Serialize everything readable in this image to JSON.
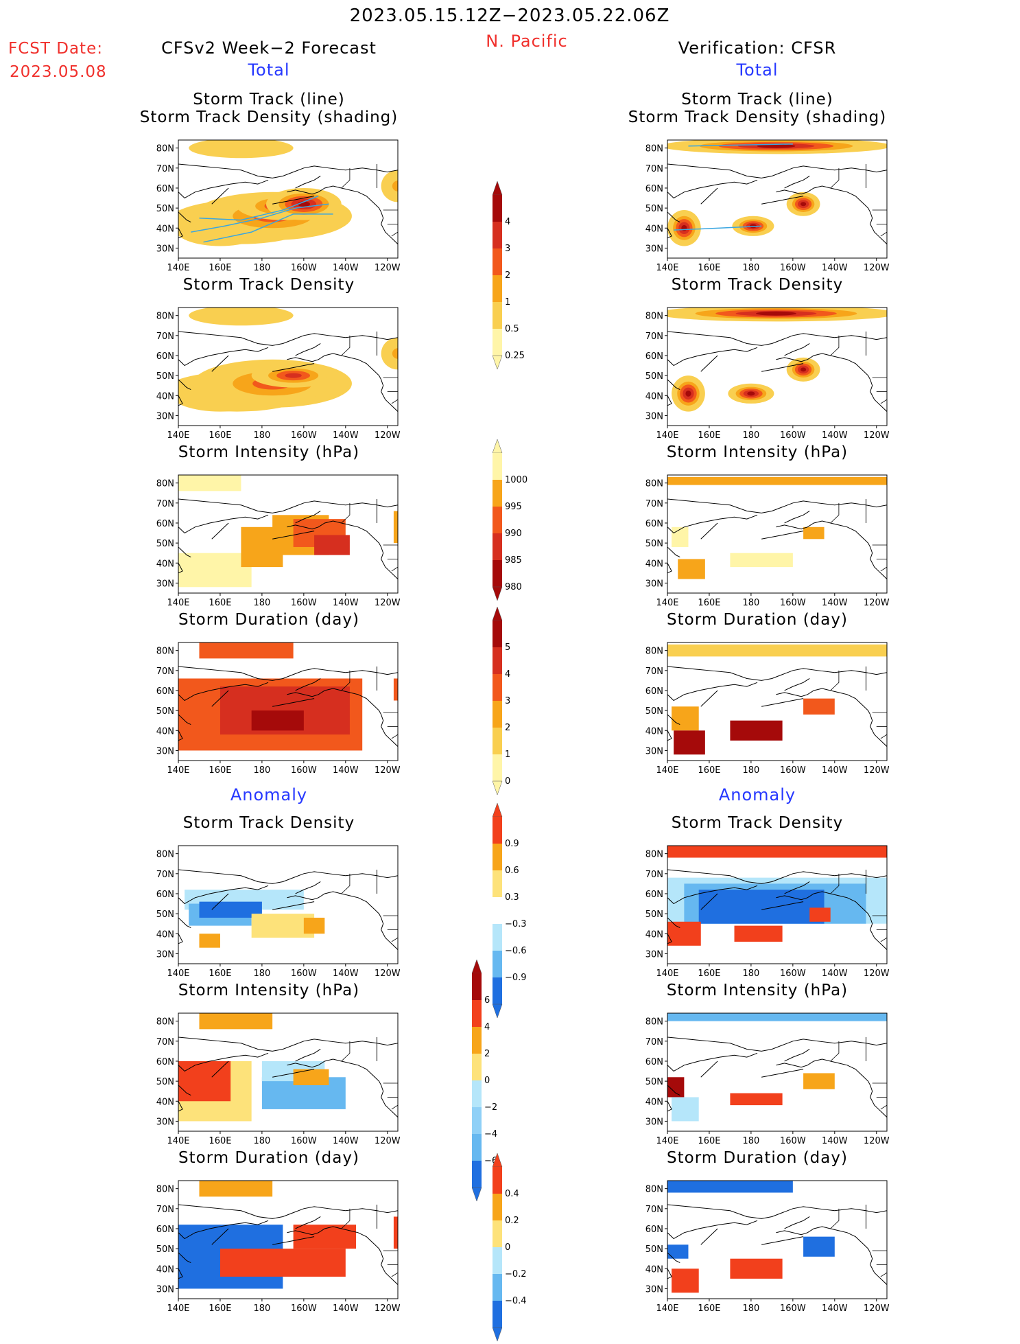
{
  "header": {
    "date_range": "2023.05.15.12Z−2023.05.22.06Z",
    "region": "N. Pacific",
    "fcst_label": "FCST Date:",
    "fcst_date": "2023.05.08",
    "left_title": "CFSv2 Week−2 Forecast",
    "right_title": "Verification: CFSR",
    "total_label": "Total",
    "anomaly_label": "Anomaly"
  },
  "panel_titles": {
    "track_line": "Storm Track (line)",
    "track_density_shading": "Storm Track Density (shading)",
    "track_density": "Storm Track Density",
    "intensity": "Storm Intensity (hPa)",
    "duration": "Storm Duration (day)"
  },
  "axes": {
    "x_ticks": [
      "140E",
      "160E",
      "180",
      "160W",
      "140W",
      "120W"
    ],
    "y_ticks": [
      "80N",
      "70N",
      "60N",
      "50N",
      "40N",
      "30N"
    ],
    "lon_range": [
      140,
      245
    ],
    "lat_range": [
      25,
      84
    ]
  },
  "colorbars": [
    {
      "id": "density_total",
      "labels": [
        "4",
        "3",
        "2",
        "1",
        "0.5",
        "0.25"
      ],
      "colors": [
        "#a50a0a",
        "#d62f1f",
        "#f2581c",
        "#f7a51a",
        "#f9cf50",
        "#fff5a8"
      ]
    },
    {
      "id": "intensity_total",
      "labels": [
        "1000",
        "995",
        "990",
        "985",
        "980"
      ],
      "colors": [
        "#fff5a8",
        "#f7a51a",
        "#f2581c",
        "#d62f1f",
        "#a50a0a"
      ]
    },
    {
      "id": "duration_total",
      "labels": [
        "5",
        "4",
        "3",
        "2",
        "1",
        "0"
      ],
      "colors": [
        "#a50a0a",
        "#d62f1f",
        "#f2581c",
        "#f7a51a",
        "#f9cf50",
        "#fff5a8"
      ]
    },
    {
      "id": "density_anom",
      "labels": [
        "0.9",
        "0.6",
        "0.3",
        "−0.3",
        "−0.6",
        "−0.9"
      ],
      "colors": [
        "#f2401c",
        "#f7a51a",
        "#fde27a",
        "#ffffff",
        "#b5e6fa",
        "#66b8f0",
        "#1f6fe0"
      ]
    },
    {
      "id": "intensity_anom",
      "labels": [
        "6",
        "4",
        "2",
        "0",
        "−2",
        "−4",
        "−6"
      ],
      "colors": [
        "#a50a0a",
        "#f2401c",
        "#f7a51a",
        "#fde27a",
        "#b5e6fa",
        "#8fd0f7",
        "#66b8f0",
        "#1f6fe0"
      ]
    },
    {
      "id": "duration_anom",
      "labels": [
        "0.4",
        "0.2",
        "0",
        "−0.2",
        "−0.4"
      ],
      "colors": [
        "#f2401c",
        "#f7a51a",
        "#fde27a",
        "#b5e6fa",
        "#66b8f0",
        "#1f6fe0"
      ]
    }
  ],
  "chart_data": [
    {
      "id": "fc_track",
      "type": "heatmap",
      "title": "Storm Track (line) Storm Track Density (shading)",
      "column": "CFSv2 Week−2 Forecast",
      "section": "Total",
      "fields": [
        {
          "lon": 190,
          "lat": 51,
          "rx": 22,
          "ry": 7,
          "level": 3
        },
        {
          "lon": 185,
          "lat": 46,
          "rx": 38,
          "ry": 12,
          "level": 2
        },
        {
          "lon": 170,
          "lat": 43,
          "rx": 35,
          "ry": 11,
          "level": 1
        },
        {
          "lon": 160,
          "lat": 40,
          "rx": 22,
          "ry": 9,
          "level": 0
        },
        {
          "lon": 200,
          "lat": 52,
          "rx": 18,
          "ry": 8,
          "level": 4
        },
        {
          "lon": 170,
          "lat": 80,
          "rx": 25,
          "ry": 5,
          "level": 0
        },
        {
          "lon": 245,
          "lat": 61,
          "rx": 8,
          "ry": 8,
          "level": 1
        }
      ],
      "tracks": [
        [
          [
            146,
            38
          ],
          [
            162,
            41
          ],
          [
            180,
            45
          ],
          [
            196,
            50
          ],
          [
            212,
            52
          ]
        ],
        [
          [
            150,
            45
          ],
          [
            170,
            44
          ],
          [
            190,
            49
          ],
          [
            207,
            56
          ]
        ],
        [
          [
            152,
            33
          ],
          [
            175,
            38
          ],
          [
            195,
            47
          ],
          [
            214,
            47
          ]
        ]
      ]
    },
    {
      "id": "ver_track",
      "type": "heatmap",
      "title": "Storm Track (line) Storm Track Density (shading)",
      "column": "Verification: CFSR",
      "section": "Total",
      "fields": [
        {
          "lon": 148,
          "lat": 40,
          "rx": 8,
          "ry": 9,
          "level": 4
        },
        {
          "lon": 181,
          "lat": 41,
          "rx": 10,
          "ry": 5,
          "level": 4
        },
        {
          "lon": 205,
          "lat": 52,
          "rx": 8,
          "ry": 6,
          "level": 4
        },
        {
          "lon": 192,
          "lat": 81,
          "rx": 55,
          "ry": 4,
          "level": 4
        }
      ],
      "tracks": [
        [
          [
            143,
            39
          ],
          [
            165,
            40
          ],
          [
            185,
            41
          ]
        ],
        [
          [
            150,
            81
          ],
          [
            200,
            82
          ]
        ]
      ]
    },
    {
      "id": "fc_density",
      "type": "heatmap",
      "title": "Storm Track Density",
      "column": "CFSv2 Week−2 Forecast",
      "section": "Total",
      "fields": [
        {
          "lon": 195,
          "lat": 50,
          "rx": 20,
          "ry": 6,
          "level": 3
        },
        {
          "lon": 185,
          "lat": 46,
          "rx": 38,
          "ry": 12,
          "level": 2
        },
        {
          "lon": 168,
          "lat": 42,
          "rx": 35,
          "ry": 10,
          "level": 1
        },
        {
          "lon": 160,
          "lat": 41,
          "rx": 24,
          "ry": 9,
          "level": 0
        },
        {
          "lon": 170,
          "lat": 80,
          "rx": 25,
          "ry": 5,
          "level": 0
        },
        {
          "lon": 245,
          "lat": 61,
          "rx": 8,
          "ry": 8,
          "level": 1
        }
      ]
    },
    {
      "id": "ver_density",
      "type": "heatmap",
      "title": "Storm Track Density",
      "column": "Verification: CFSR",
      "section": "Total",
      "fields": [
        {
          "lon": 150,
          "lat": 41,
          "rx": 8,
          "ry": 9,
          "level": 4
        },
        {
          "lon": 180,
          "lat": 41,
          "rx": 11,
          "ry": 5,
          "level": 4
        },
        {
          "lon": 205,
          "lat": 53,
          "rx": 8,
          "ry": 6,
          "level": 4
        },
        {
          "lon": 192,
          "lat": 81,
          "rx": 58,
          "ry": 4,
          "level": 4
        }
      ]
    },
    {
      "id": "fc_intensity",
      "type": "heatmap",
      "title": "Storm Intensity (hPa)",
      "column": "CFSv2 Week−2 Forecast",
      "section": "Total",
      "cells": [
        [
          140,
          170,
          76,
          84,
          0
        ],
        [
          140,
          175,
          28,
          45,
          0
        ],
        [
          170,
          190,
          38,
          58,
          1
        ],
        [
          185,
          212,
          44,
          64,
          1
        ],
        [
          195,
          220,
          48,
          62,
          2
        ],
        [
          205,
          222,
          44,
          54,
          3
        ],
        [
          243,
          245,
          50,
          66,
          1
        ]
      ]
    },
    {
      "id": "ver_intensity",
      "type": "heatmap",
      "title": "Storm Intensity (hPa)",
      "column": "Verification: CFSR",
      "section": "Total",
      "cells": [
        [
          140,
          245,
          79,
          83,
          1
        ],
        [
          142,
          150,
          48,
          58,
          0
        ],
        [
          145,
          158,
          32,
          42,
          1
        ],
        [
          170,
          200,
          38,
          45,
          0
        ],
        [
          205,
          215,
          52,
          58,
          1
        ]
      ]
    },
    {
      "id": "fc_duration",
      "type": "heatmap",
      "title": "Storm Duration (day)",
      "column": "CFSv2 Week−2 Forecast",
      "section": "Total",
      "cells": [
        [
          150,
          195,
          76,
          84,
          2
        ],
        [
          140,
          228,
          30,
          66,
          2
        ],
        [
          160,
          222,
          38,
          62,
          3
        ],
        [
          175,
          200,
          40,
          50,
          4
        ],
        [
          243,
          245,
          55,
          66,
          2
        ]
      ]
    },
    {
      "id": "ver_duration",
      "type": "heatmap",
      "title": "Storm Duration (day)",
      "column": "Verification: CFSR",
      "section": "Total",
      "cells": [
        [
          140,
          245,
          77,
          83,
          0
        ],
        [
          142,
          155,
          40,
          52,
          1
        ],
        [
          143,
          158,
          28,
          40,
          4
        ],
        [
          170,
          195,
          35,
          45,
          4
        ],
        [
          205,
          220,
          48,
          56,
          2
        ]
      ]
    },
    {
      "id": "fc_density_anom",
      "type": "heatmap",
      "title": "Storm Track Density",
      "column": "CFSv2 Week−2 Forecast",
      "section": "Anomaly",
      "cells": [
        [
          143,
          200,
          52,
          62,
          4
        ],
        [
          145,
          175,
          44,
          55,
          5
        ],
        [
          150,
          180,
          48,
          56,
          6
        ],
        [
          175,
          205,
          38,
          50,
          2
        ],
        [
          150,
          160,
          33,
          40,
          1
        ],
        [
          200,
          210,
          40,
          48,
          1
        ]
      ]
    },
    {
      "id": "ver_density_anom",
      "type": "heatmap",
      "title": "Storm Track Density",
      "column": "Verification: CFSR",
      "section": "Anomaly",
      "cells": [
        [
          140,
          245,
          78,
          84,
          0
        ],
        [
          140,
          245,
          45,
          68,
          4
        ],
        [
          148,
          235,
          45,
          65,
          5
        ],
        [
          155,
          215,
          45,
          62,
          6
        ],
        [
          140,
          156,
          34,
          46,
          0
        ],
        [
          172,
          195,
          36,
          44,
          0
        ],
        [
          208,
          218,
          46,
          53,
          0
        ]
      ]
    },
    {
      "id": "fc_intensity_anom",
      "type": "heatmap",
      "title": "Storm Intensity (hPa)",
      "column": "CFSv2 Week−2 Forecast",
      "section": "Anomaly",
      "cells": [
        [
          150,
          185,
          76,
          84,
          2
        ],
        [
          140,
          175,
          30,
          60,
          3
        ],
        [
          140,
          165,
          40,
          60,
          1
        ],
        [
          180,
          220,
          36,
          52,
          6
        ],
        [
          180,
          210,
          50,
          60,
          4
        ],
        [
          195,
          212,
          48,
          56,
          2
        ]
      ]
    },
    {
      "id": "ver_intensity_anom",
      "type": "heatmap",
      "title": "Storm Intensity (hPa)",
      "column": "Verification: CFSR",
      "section": "Anomaly",
      "cells": [
        [
          140,
          245,
          80,
          84,
          6
        ],
        [
          140,
          148,
          42,
          52,
          0
        ],
        [
          142,
          155,
          30,
          42,
          4
        ],
        [
          170,
          195,
          38,
          44,
          1
        ],
        [
          205,
          220,
          46,
          54,
          2
        ]
      ]
    },
    {
      "id": "fc_duration_anom",
      "type": "heatmap",
      "title": "Storm Duration (day)",
      "column": "CFSv2 Week−2 Forecast",
      "section": "Anomaly",
      "cells": [
        [
          150,
          185,
          76,
          84,
          1
        ],
        [
          140,
          190,
          30,
          62,
          5
        ],
        [
          160,
          220,
          36,
          50,
          0
        ],
        [
          195,
          225,
          50,
          62,
          0
        ],
        [
          243,
          245,
          50,
          66,
          0
        ]
      ]
    },
    {
      "id": "ver_duration_anom",
      "type": "heatmap",
      "title": "Storm Duration (day)",
      "column": "Verification: CFSR",
      "section": "Anomaly",
      "cells": [
        [
          140,
          200,
          78,
          84,
          5
        ],
        [
          140,
          150,
          45,
          52,
          5
        ],
        [
          142,
          155,
          28,
          40,
          0
        ],
        [
          170,
          195,
          35,
          45,
          0
        ],
        [
          205,
          220,
          46,
          56,
          5
        ]
      ]
    }
  ]
}
